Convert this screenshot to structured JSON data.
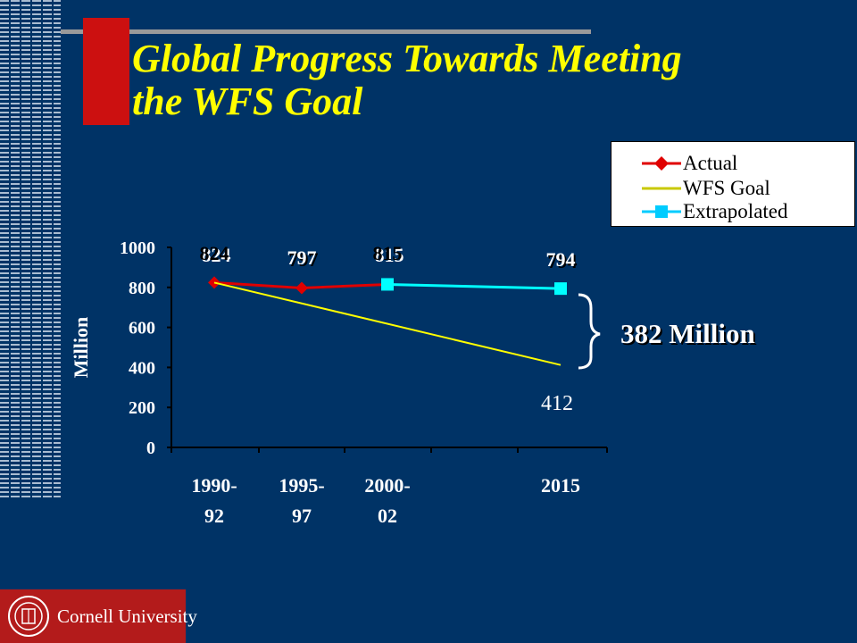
{
  "slide": {
    "title_line1": "Global Progress Towards Meeting",
    "title_line2": "the WFS Goal",
    "brace_label": "382 Million",
    "footer_name": "Cornell University"
  },
  "chart_data": {
    "type": "line",
    "ylabel": "Million",
    "ylim": [
      0,
      1000
    ],
    "yticks": [
      "1000",
      "800",
      "600",
      "400",
      "200",
      "0"
    ],
    "categories": [
      "1990-92",
      "1995-97",
      "2000-02",
      "2015"
    ],
    "category_lines": [
      [
        "1990-",
        "92"
      ],
      [
        "1995-",
        "97"
      ],
      [
        "2000-",
        "02"
      ],
      [
        "2015",
        ""
      ]
    ],
    "series": [
      {
        "name": "Actual",
        "color": "#e00000",
        "marker": "diamond",
        "points": [
          {
            "x": "1990-92",
            "y": 824
          },
          {
            "x": "1995-97",
            "y": 797
          },
          {
            "x": "2000-02",
            "y": 815
          }
        ]
      },
      {
        "name": "WFS Goal",
        "color": "#ffff00",
        "marker": "none",
        "points": [
          {
            "x": "1990-92",
            "y": 824
          },
          {
            "x": "2015",
            "y": 412
          }
        ]
      },
      {
        "name": "Extrapolated",
        "color": "#00ffff",
        "marker": "square",
        "points": [
          {
            "x": "2000-02",
            "y": 815
          },
          {
            "x": "2015",
            "y": 794
          }
        ]
      }
    ],
    "data_labels": [
      {
        "text": "824",
        "x": "1990-92",
        "y": 824,
        "style": "bold-white-shadow"
      },
      {
        "text": "797",
        "x": "1995-97",
        "y": 797,
        "style": "bold-black-shadow"
      },
      {
        "text": "815",
        "x": "2000-02",
        "y": 815,
        "style": "bold-white-shadow"
      },
      {
        "text": "794",
        "x": "2015",
        "y": 794,
        "style": "bold-black-shadow"
      },
      {
        "text": "412",
        "x": "2015",
        "y": 412,
        "style": "plain-white"
      }
    ],
    "legend": {
      "placement": "top-right",
      "entries": [
        "Actual",
        "WFS Goal",
        "Extrapolated"
      ]
    },
    "grid": false
  }
}
